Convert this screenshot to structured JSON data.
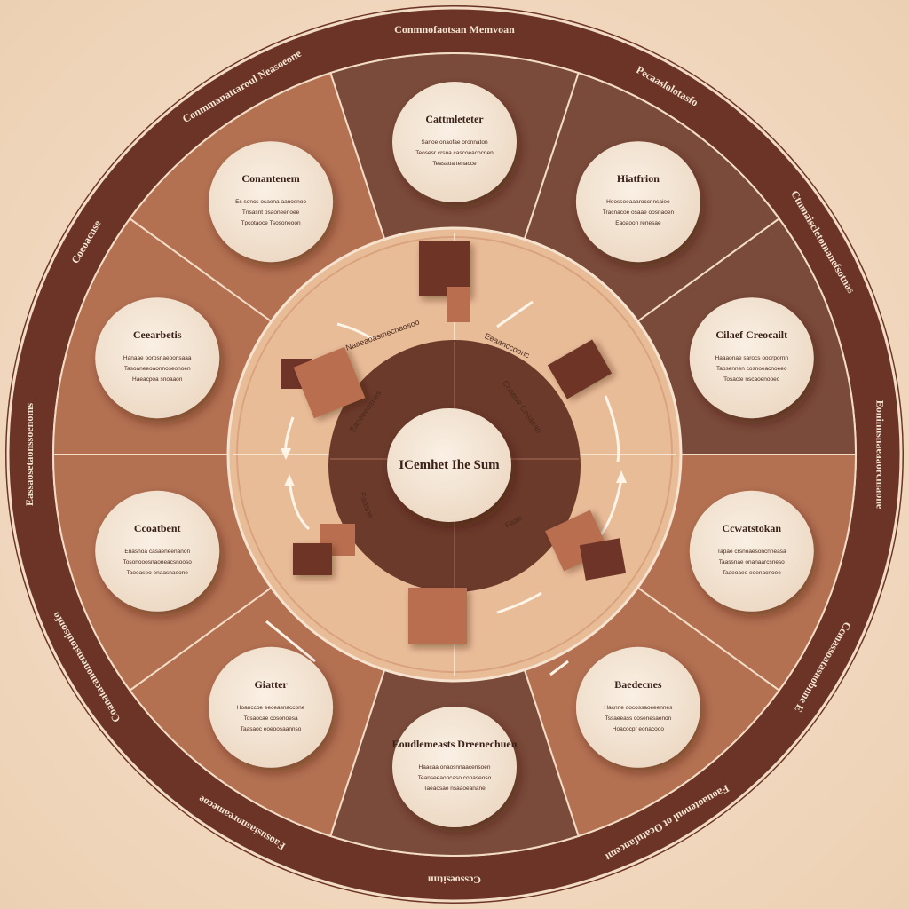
{
  "colors": {
    "outer_rim": "#6b3426",
    "segment_a": "#b47152",
    "segment_b": "#7a4a3a",
    "segment_c": "#9a5e46",
    "inner_ring": "#e7b996",
    "center_ring": "#6b3a2b",
    "card": "#f4e6d6",
    "card_text": "#3a2119",
    "accent_block_dark": "#6e3427",
    "accent_block_light": "#b86e4f"
  },
  "center": {
    "title": "ICemhet Ihe Sum"
  },
  "segments": [
    {
      "title": "Cattmleteter",
      "lines": [
        "Sanoe onaofae oronnaton",
        "Teosesr crsna cascoeacocnen",
        "Teasaoa tenacce"
      ]
    },
    {
      "title": "Hiatfrion",
      "lines": [
        "Hoossoeaaaroccnnsaiee",
        "Tracnacoe osaae oosnaoen",
        "Eaoaoon renesae"
      ]
    },
    {
      "title": "Cilaef Creocailt",
      "lines": [
        "Haaaonae sarocs ooorpornn",
        "Taosennen cosnoeacnoeeo",
        "Tosacte nscaoenooeo"
      ]
    },
    {
      "title": "Ccwatstokan",
      "lines": [
        "Tapae crsnoaesoncnneasa",
        "Taassnae onanaarcsneso",
        "Taaeoaeo eoenacnoee"
      ]
    },
    {
      "title": "Baedecnes",
      "lines": [
        "Hacnne oocossaoeeennes",
        "Tssaeeass cosenesaenon",
        "Hoacocpr eonacooo"
      ]
    },
    {
      "title": "Eoudlemeasts Dreenechuen",
      "lines": [
        "Haacaa onaosnnaacensoen",
        "Teanseeaoncaso conaseoso",
        "Taeaosae nsaaoeanane"
      ]
    },
    {
      "title": "Giatter",
      "lines": [
        "Hoanccoe eeceasnaccone",
        "Tosaocae cosonoesa",
        "Taasaoc eoeoosaannso"
      ]
    },
    {
      "title": "Ccoatbent",
      "lines": [
        "Enasnoa casaeneenanon",
        "Tosonooosnaoneacsnooso",
        "Taooaseo enaasnaeone"
      ]
    },
    {
      "title": "Ceearbetis",
      "lines": [
        "Hanaae oorosnaeoonsaaa",
        "Tasoaneeoaonnoseonoen",
        "Haeacpoa snoaaon"
      ]
    },
    {
      "title": "Conantenem",
      "lines": [
        "Es soncs osaena aanosnoo",
        "Tnsasnt osaoneenoee",
        "Tpcotaoce Tsosoneoon"
      ]
    }
  ],
  "outer_labels": [
    "Conmnofaotsan Memvoan",
    "Pecaaslolotasfo",
    "Ctnmaiscletomanefsotnas",
    "Eoninnsnaeaaorcmaone",
    "Ccmassoatasnobnne E",
    "Faouaotenoul ot Ocatufancemt",
    "Ccssoesitnn",
    "Faosusiasnoreamecoe",
    "Coanatacanonemstoulsonfo",
    "Eassaosetaonssoenoms",
    "Coeoacnse",
    "Conmmanattaroul Neasoeone"
  ],
  "middle_labels": [
    "Naaeaoasmecnaosoo",
    "Eeaanccoonc",
    "Cnaeoe Cnsaeao",
    "Eaoeeeasnes",
    "Faasne",
    "Faae"
  ]
}
